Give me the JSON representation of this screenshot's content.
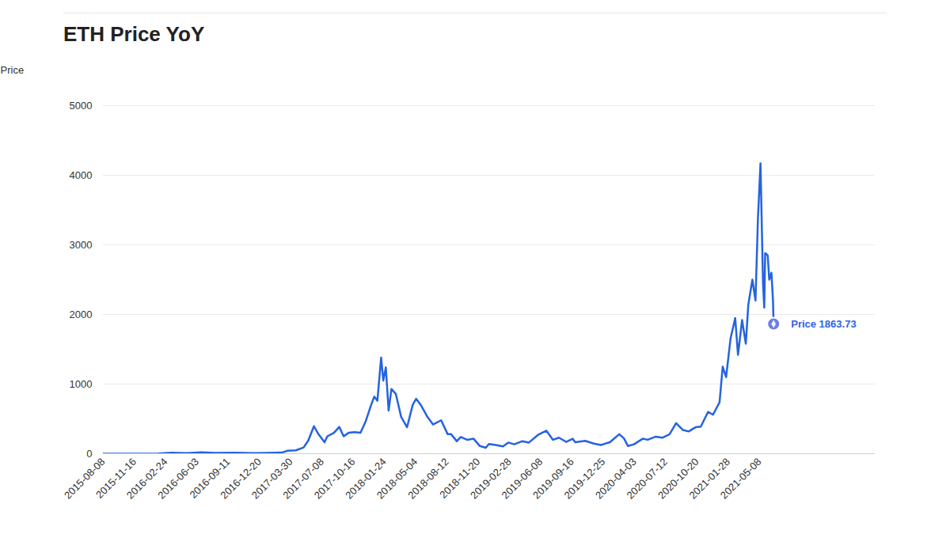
{
  "chart_data": {
    "type": "line",
    "title": "ETH Price YoY",
    "y_label": "Price",
    "color": "#2563e0",
    "grid": true,
    "annotation": "Price 1863.73",
    "xlim": [
      "2015-08-08",
      "2022-05-13"
    ],
    "xticks": [
      "2015-08-08",
      "2015-11-16",
      "2016-02-24",
      "2016-06-03",
      "2016-09-11",
      "2016-12-20",
      "2017-03-30",
      "2017-07-08",
      "2017-10-16",
      "2018-01-24",
      "2018-05-04",
      "2018-08-12",
      "2018-11-20",
      "2019-02-28",
      "2019-06-08",
      "2019-09-16",
      "2019-12-25",
      "2020-04-03",
      "2020-07-12",
      "2020-10-20",
      "2021-01-28",
      "2021-05-08"
    ],
    "ylim": [
      0,
      5000
    ],
    "yticks": [
      0,
      1000,
      2000,
      3000,
      4000,
      5000
    ],
    "x": [
      "2015-08-08",
      "2015-10-01",
      "2015-12-01",
      "2016-02-01",
      "2016-03-13",
      "2016-05-01",
      "2016-06-17",
      "2016-08-01",
      "2016-10-01",
      "2016-12-01",
      "2017-01-15",
      "2017-03-01",
      "2017-03-20",
      "2017-04-15",
      "2017-05-10",
      "2017-05-25",
      "2017-06-12",
      "2017-06-25",
      "2017-07-16",
      "2017-07-25",
      "2017-08-15",
      "2017-09-01",
      "2017-09-15",
      "2017-10-01",
      "2017-10-20",
      "2017-11-08",
      "2017-11-25",
      "2017-12-12",
      "2017-12-22",
      "2018-01-01",
      "2018-01-13",
      "2018-01-20",
      "2018-01-28",
      "2018-02-06",
      "2018-02-15",
      "2018-03-01",
      "2018-03-18",
      "2018-04-06",
      "2018-04-24",
      "2018-05-05",
      "2018-05-20",
      "2018-06-10",
      "2018-06-28",
      "2018-07-24",
      "2018-08-14",
      "2018-08-25",
      "2018-09-12",
      "2018-09-25",
      "2018-10-15",
      "2018-11-05",
      "2018-11-25",
      "2018-12-14",
      "2018-12-24",
      "2019-01-15",
      "2019-02-07",
      "2019-02-24",
      "2019-03-15",
      "2019-04-10",
      "2019-05-01",
      "2019-05-30",
      "2019-06-26",
      "2019-07-17",
      "2019-08-05",
      "2019-08-28",
      "2019-09-18",
      "2019-09-26",
      "2019-10-28",
      "2019-11-25",
      "2019-12-17",
      "2020-01-15",
      "2020-02-14",
      "2020-02-29",
      "2020-03-13",
      "2020-04-01",
      "2020-04-29",
      "2020-05-15",
      "2020-06-10",
      "2020-07-01",
      "2020-07-24",
      "2020-08-14",
      "2020-09-05",
      "2020-09-23",
      "2020-10-15",
      "2020-11-01",
      "2020-11-24",
      "2020-12-10",
      "2020-12-31",
      "2021-01-10",
      "2021-01-21",
      "2021-02-04",
      "2021-02-19",
      "2021-02-28",
      "2021-03-13",
      "2021-03-25",
      "2021-04-02",
      "2021-04-15",
      "2021-04-25",
      "2021-05-03",
      "2021-05-11",
      "2021-05-19",
      "2021-05-23",
      "2021-05-26",
      "2021-06-03",
      "2021-06-08",
      "2021-06-15",
      "2021-06-20",
      "2021-06-22"
    ],
    "values": [
      1,
      0.7,
      0.9,
      2.5,
      15,
      9,
      21,
      11,
      13,
      8,
      10,
      16,
      42,
      48,
      90,
      190,
      395,
      290,
      165,
      250,
      300,
      385,
      250,
      300,
      310,
      300,
      470,
      700,
      820,
      760,
      1380,
      1050,
      1240,
      620,
      930,
      860,
      530,
      380,
      700,
      790,
      700,
      530,
      420,
      480,
      280,
      280,
      180,
      240,
      200,
      215,
      110,
      85,
      140,
      125,
      105,
      160,
      135,
      180,
      160,
      270,
      330,
      200,
      230,
      170,
      215,
      165,
      185,
      145,
      125,
      165,
      280,
      220,
      110,
      135,
      215,
      200,
      245,
      230,
      280,
      440,
      340,
      320,
      380,
      390,
      600,
      560,
      740,
      1250,
      1100,
      1650,
      1950,
      1420,
      1920,
      1580,
      2140,
      2500,
      2200,
      3400,
      4170,
      2450,
      2100,
      2880,
      2850,
      2500,
      2600,
      2200,
      1863.73
    ]
  }
}
